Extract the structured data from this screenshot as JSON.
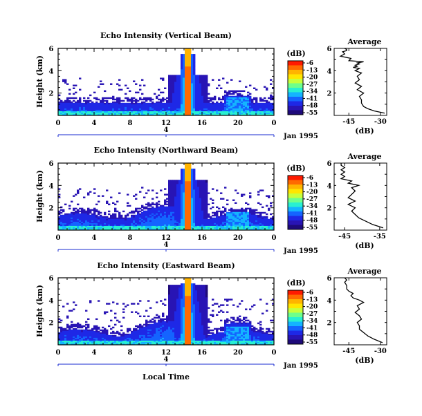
{
  "chart_data": {
    "type": "heatmap",
    "colorbar": {
      "unit_label": "(dB)",
      "ticks": [
        "-6",
        "-13",
        "-20",
        "-27",
        "-34",
        "-41",
        "-48",
        "-55"
      ],
      "colors": [
        "#ff1a00",
        "#ff6a00",
        "#ffb400",
        "#ffe600",
        "#c8ff3c",
        "#6eff8c",
        "#28f0d2",
        "#14b4ff",
        "#1464ff",
        "#1e28e6",
        "#2814b4",
        "#1e0a7a"
      ]
    },
    "x_ticks": [
      "0",
      "4",
      "8",
      "12",
      "16",
      "20",
      "0"
    ],
    "date_marker": "4",
    "date_label": "Jan 1995",
    "xlabel": "Local Time",
    "ylabel": "Height (km)",
    "y_ticks": [
      "2",
      "4",
      "6"
    ],
    "panels": [
      {
        "title": "Echo Intensity (Vertical Beam)",
        "profile": {
          "title": "Average",
          "xlabel": "(dB)",
          "x_ticks": [
            "-45",
            "-30"
          ],
          "xlim": [
            -52,
            -27
          ],
          "ylim": [
            0,
            6
          ],
          "x": [
            -28,
            -33,
            -36,
            -38,
            -39,
            -39,
            -40,
            -38,
            -41,
            -39,
            -42,
            -40,
            -41,
            -39,
            -42,
            -40,
            -43,
            -41,
            -42,
            -40,
            -41,
            -38,
            -45,
            -44,
            -49,
            -47,
            -48,
            -46,
            -46,
            -47
          ],
          "y": [
            0.2,
            0.4,
            0.6,
            0.8,
            1.1,
            1.4,
            1.7,
            2.0,
            2.3,
            2.6,
            2.9,
            3.2,
            3.5,
            3.8,
            4.0,
            4.2,
            4.3,
            4.4,
            4.5,
            4.6,
            4.7,
            4.8,
            4.9,
            5.1,
            5.3,
            5.5,
            5.7,
            5.8,
            5.9,
            6.0
          ]
        }
      },
      {
        "title": "Echo Intensity (Northward Beam)",
        "profile": {
          "title": "Average",
          "xlabel": "(dB)",
          "x_ticks": [
            "-45",
            "-35"
          ],
          "xlim": [
            -48,
            -33
          ],
          "ylim": [
            0,
            6
          ],
          "x": [
            -34,
            -37,
            -39,
            -41,
            -42,
            -43,
            -42,
            -44,
            -42,
            -44,
            -43,
            -42,
            -43,
            -41,
            -44,
            -43,
            -46,
            -45,
            -46,
            -45,
            -46,
            -45,
            -46,
            -46
          ],
          "y": [
            0.2,
            0.5,
            0.8,
            1.1,
            1.4,
            1.7,
            2.0,
            2.3,
            2.6,
            2.9,
            3.2,
            3.5,
            3.8,
            4.0,
            4.2,
            4.4,
            4.6,
            4.8,
            5.0,
            5.2,
            5.4,
            5.6,
            5.8,
            6.0
          ]
        }
      },
      {
        "title": "Echo Intensity (Eastward Beam)",
        "profile": {
          "title": "Average",
          "xlabel": "(dB)",
          "x_ticks": [
            "-45",
            "-30"
          ],
          "xlim": [
            -52,
            -27
          ],
          "ylim": [
            0,
            6
          ],
          "x": [
            -29,
            -33,
            -36,
            -38,
            -40,
            -40,
            -41,
            -39,
            -40,
            -42,
            -40,
            -41,
            -38,
            -40,
            -43,
            -44,
            -43,
            -45,
            -46,
            -46,
            -47,
            -46,
            -47
          ],
          "y": [
            0.2,
            0.5,
            0.8,
            1.1,
            1.4,
            1.7,
            2.0,
            2.3,
            2.6,
            2.9,
            3.2,
            3.5,
            3.8,
            4.0,
            4.2,
            4.4,
            4.6,
            4.8,
            5.0,
            5.3,
            5.6,
            5.8,
            6.0
          ]
        }
      }
    ]
  }
}
